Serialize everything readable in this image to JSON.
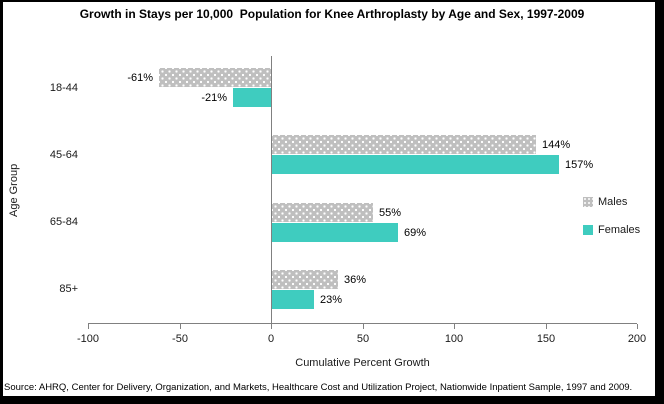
{
  "title": "Growth in Stays per 10,000  Population for Knee Arthroplasty by Age and Sex, 1997-2009",
  "chart_data": {
    "type": "bar",
    "orientation": "horizontal",
    "title": "Growth in Stays per 10,000 Population for Knee Arthroplasty by Age and Sex, 1997-2009",
    "categories": [
      "18-44",
      "45-64",
      "65-84",
      "85+"
    ],
    "series": [
      {
        "name": "Males",
        "color": "#bfbfbf",
        "pattern": "white-dots",
        "values": [
          -61,
          144,
          55,
          36
        ],
        "labels": [
          "-61%",
          "144%",
          "55%",
          "36%"
        ]
      },
      {
        "name": "Females",
        "color": "#3fccbf",
        "pattern": "solid",
        "values": [
          -21,
          157,
          69,
          23
        ],
        "labels": [
          "-21%",
          "157%",
          "69%",
          "23%"
        ]
      }
    ],
    "xlabel": "Cumulative Percent Growth",
    "ylabel": "Age Group",
    "xlim": [
      -100,
      200
    ],
    "xticks": [
      -100,
      -50,
      0,
      50,
      100,
      150,
      200
    ],
    "grid": false,
    "legend_position": "right"
  },
  "colors": {
    "males_bar": "#bfbfbf",
    "females_bar": "#3fccbf",
    "axis": "#808080",
    "background": "#ffffff",
    "frame": "#000000"
  },
  "source_note": "Source: AHRQ, Center for Delivery, Organization, and Markets, Healthcare Cost and Utilization Project, Nationwide Inpatient Sample, 1997 and 2009."
}
